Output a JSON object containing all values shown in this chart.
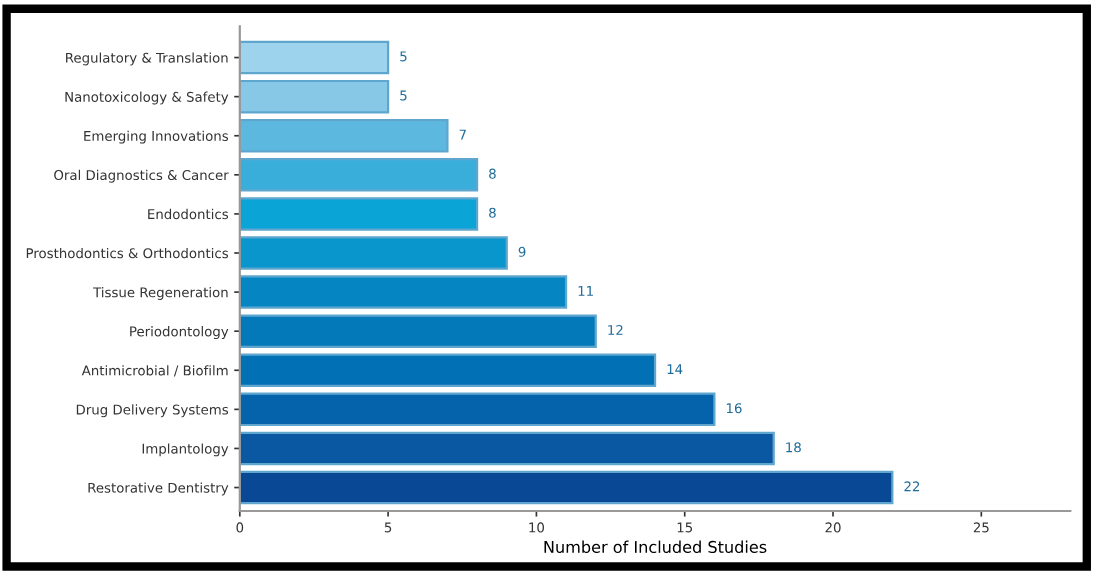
{
  "chart_data": {
    "type": "bar",
    "orientation": "horizontal",
    "xlabel": "Number of Included Studies",
    "categories": [
      "Regulatory & Translation",
      "Nanotoxicology & Safety",
      "Emerging Innovations",
      "Oral Diagnostics & Cancer",
      "Endodontics",
      "Prosthodontics & Orthodontics",
      "Tissue Regeneration",
      "Periodontology",
      "Antimicrobial / Biofilm",
      "Drug Delivery Systems",
      "Implantology",
      "Restorative Dentistry"
    ],
    "values": [
      5,
      5,
      7,
      8,
      8,
      9,
      11,
      12,
      14,
      16,
      18,
      22
    ],
    "colors": [
      "#9dd3ec",
      "#86c8e6",
      "#5cb8de",
      "#3aaedb",
      "#0aa4d6",
      "#0896cc",
      "#0586c2",
      "#0479b9",
      "#0270b4",
      "#0563ab",
      "#0a57a2",
      "#084894"
    ],
    "xlim": [
      0,
      28
    ],
    "xticks": [
      0,
      5,
      10,
      15,
      20,
      25
    ],
    "data_labels": true,
    "grid": false,
    "legend": false
  }
}
